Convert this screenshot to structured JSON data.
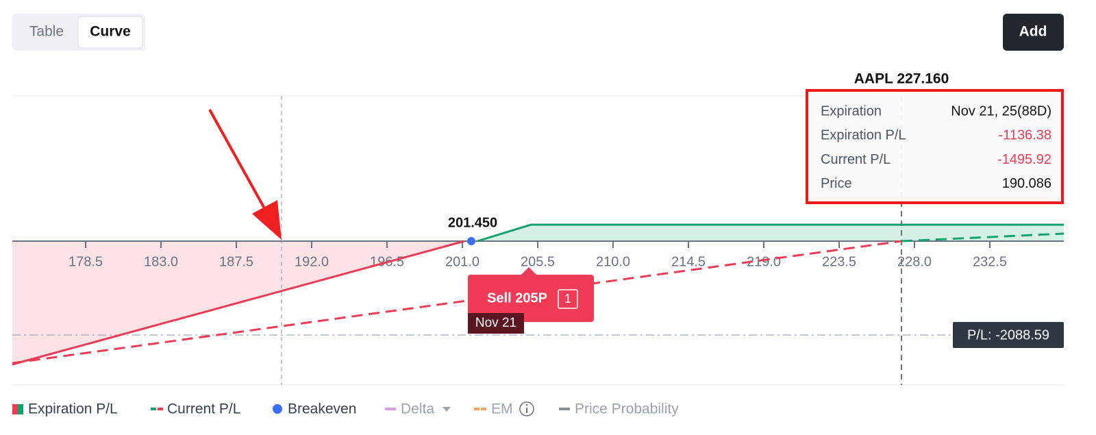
{
  "toggle": {
    "options": [
      "Table",
      "Curve"
    ]
  },
  "add_button": "Add",
  "chart": {
    "ticker_label": "AAPL 227.160",
    "breakeven_label": "201.450",
    "x_ticks": [
      "178.5",
      "183.0",
      "187.5",
      "192.0",
      "196.5",
      "201.0",
      "205.5",
      "210.0",
      "214.5",
      "219.0",
      "223.5",
      "228.0",
      "232.5"
    ],
    "order_tag": {
      "action": "Sell 205P",
      "quantity": "1",
      "date": "Nov 21"
    },
    "pl_label": "P/L: -2088.59"
  },
  "tooltip": {
    "rows": [
      [
        "Expiration",
        "Nov 21, 25(88D)"
      ],
      [
        "Expiration P/L",
        "-1136.38"
      ],
      [
        "Current P/L",
        "-1495.92"
      ],
      [
        "Price",
        "190.086"
      ]
    ]
  },
  "legend": [
    "Expiration P/L",
    "Current P/L",
    "Breakeven",
    "Delta",
    "EM",
    "Price Probability"
  ]
}
